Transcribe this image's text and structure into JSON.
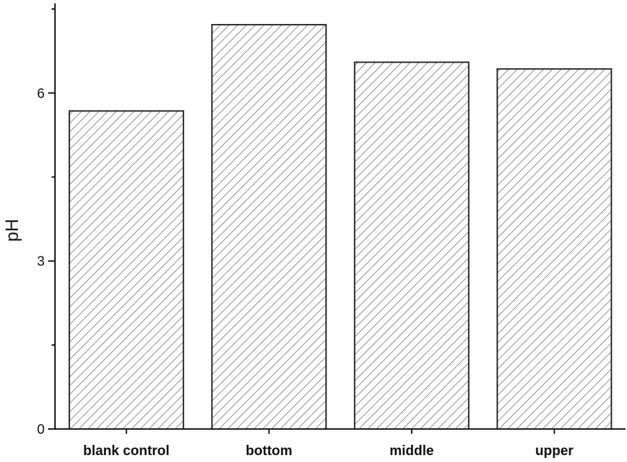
{
  "chart_data": {
    "type": "bar",
    "categories": [
      "blank control",
      "bottom",
      "middle",
      "upper"
    ],
    "values": [
      5.68,
      7.22,
      6.55,
      6.43
    ],
    "title": "",
    "xlabel": "",
    "ylabel": "pH",
    "ylim": [
      0,
      7.6
    ],
    "yticks": [
      0,
      3,
      6
    ],
    "grid": false,
    "bar_fill": "hatched",
    "bar_edge_color": "#222222",
    "hatch_color": "#555555"
  }
}
